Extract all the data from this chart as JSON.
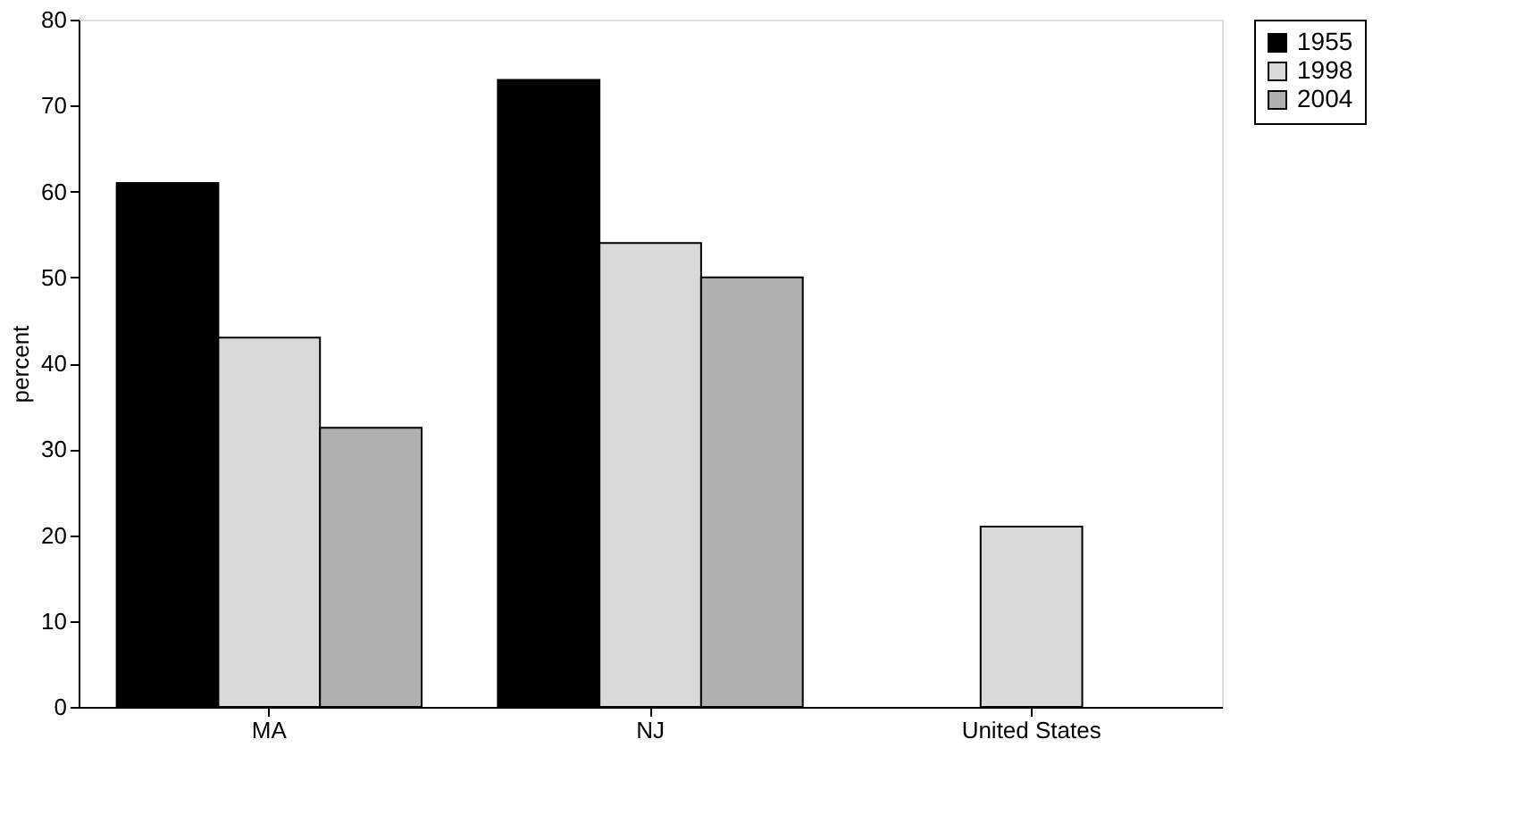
{
  "chart_data": {
    "type": "bar",
    "ylabel": "percent",
    "categories": [
      "MA",
      "NJ",
      "United States"
    ],
    "series": [
      {
        "name": "1955",
        "color": "#000000",
        "values": [
          61,
          73,
          null
        ]
      },
      {
        "name": "1998",
        "color": "#d9d9d9",
        "values": [
          43,
          54,
          21
        ]
      },
      {
        "name": "2004",
        "color": "#b0b0b0",
        "values": [
          32.5,
          50,
          null
        ]
      }
    ],
    "ylim": [
      0,
      80
    ],
    "yticks": [
      0,
      10,
      20,
      30,
      40,
      50,
      60,
      70,
      80
    ],
    "grid": false,
    "legend": "right"
  }
}
